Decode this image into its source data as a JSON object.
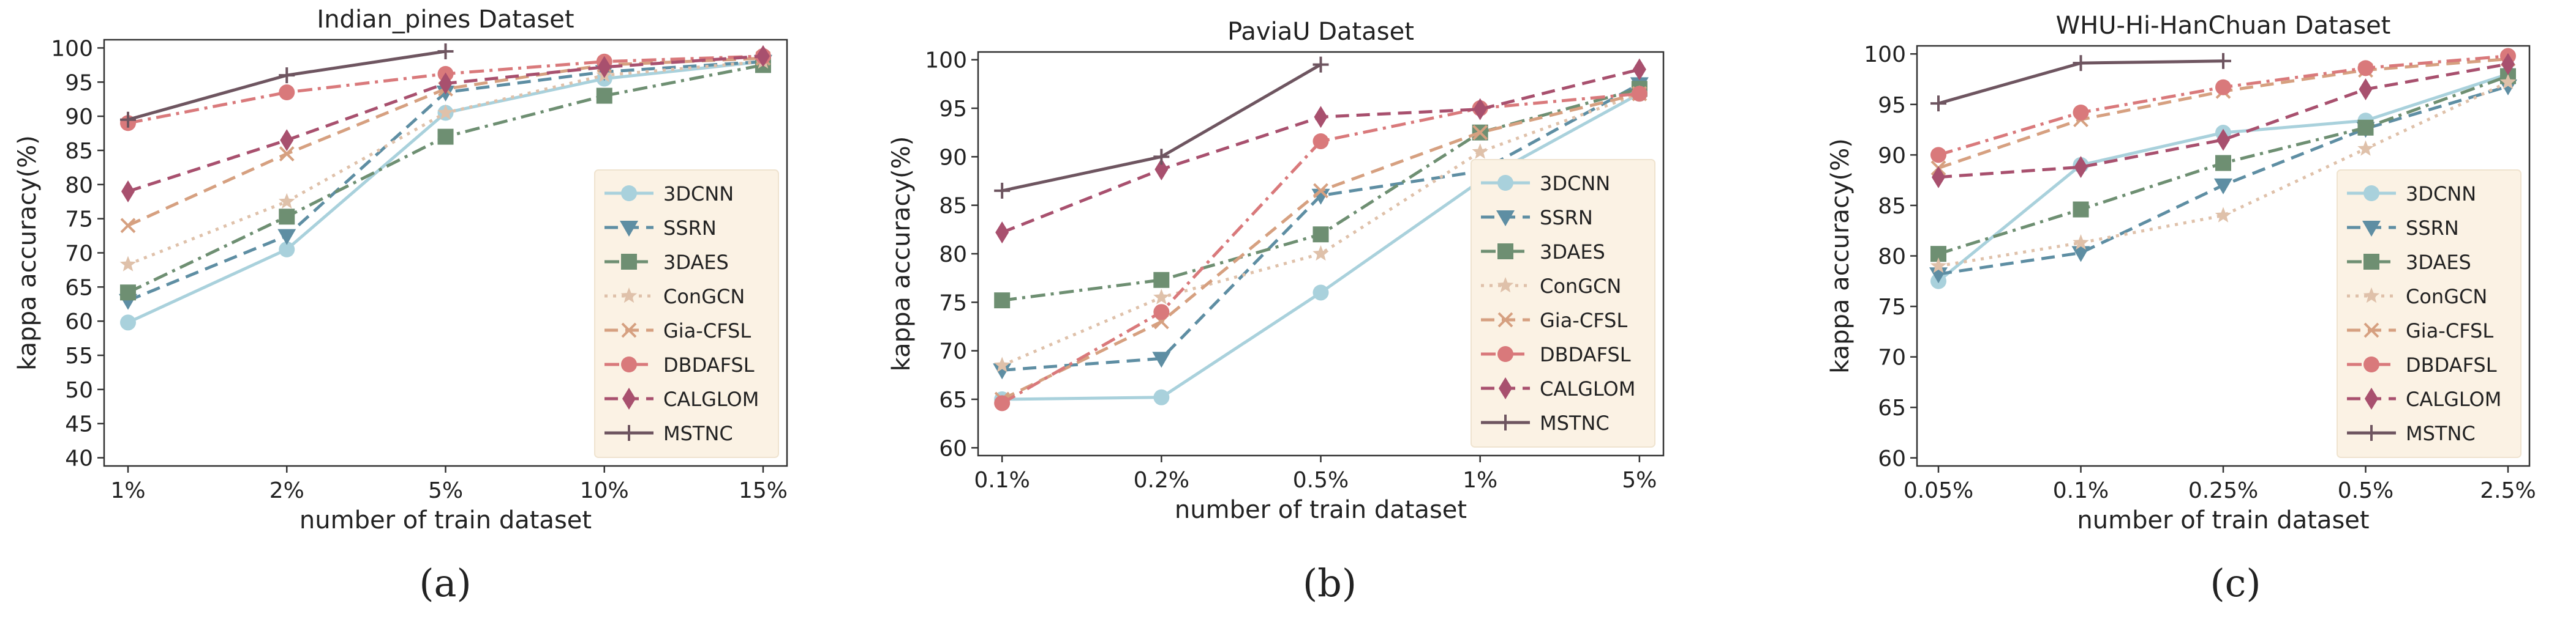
{
  "chart_data": [
    {
      "type": "line",
      "panel_label": "(a)",
      "title": "Indian_pines Dataset",
      "xlabel": "number of train dataset",
      "ylabel": "kappa accuracy(%)",
      "categories": [
        "1%",
        "2%",
        "5%",
        "10%",
        "15%"
      ],
      "ylim": [
        40,
        100
      ],
      "yticks": [
        40,
        45,
        50,
        55,
        60,
        65,
        70,
        75,
        80,
        85,
        90,
        95,
        100
      ],
      "legend_position": "lower-right",
      "grid": false,
      "series": [
        {
          "name": "3DCNN",
          "values": [
            59.8,
            70.5,
            90.5,
            95.5,
            98.0
          ]
        },
        {
          "name": "SSRN",
          "values": [
            63.0,
            72.5,
            93.5,
            96.5,
            98.0
          ]
        },
        {
          "name": "3DAES",
          "values": [
            64.2,
            75.3,
            87.0,
            93.0,
            97.5
          ]
        },
        {
          "name": "ConGCN",
          "values": [
            68.3,
            77.5,
            90.5,
            96.0,
            98.0
          ]
        },
        {
          "name": "Gia-CFSL",
          "values": [
            74.0,
            84.5,
            94.0,
            97.5,
            98.5
          ]
        },
        {
          "name": "DBDAFSL",
          "values": [
            89.0,
            93.5,
            96.2,
            98.0,
            98.8
          ]
        },
        {
          "name": "CALGLOM",
          "values": [
            79.0,
            86.5,
            94.8,
            97.2,
            98.8
          ]
        },
        {
          "name": "MSTNC",
          "values": [
            89.5,
            96.0,
            99.5,
            null,
            null
          ]
        }
      ]
    },
    {
      "type": "line",
      "panel_label": "(b)",
      "title": "PaviaU Dataset",
      "xlabel": "number of train dataset",
      "ylabel": "kappa accuracy(%)",
      "categories": [
        "0.1%",
        "0.2%",
        "0.5%",
        "1%",
        "5%"
      ],
      "ylim": [
        60,
        100
      ],
      "yticks": [
        60,
        65,
        70,
        75,
        80,
        85,
        90,
        95,
        100
      ],
      "legend_position": "lower-right",
      "grid": false,
      "series": [
        {
          "name": "3DCNN",
          "values": [
            65.0,
            65.2,
            76.0,
            87.5,
            96.5
          ]
        },
        {
          "name": "SSRN",
          "values": [
            68.0,
            69.2,
            86.0,
            88.5,
            97.5
          ]
        },
        {
          "name": "3DAES",
          "values": [
            75.2,
            77.3,
            82.0,
            92.5,
            97.0
          ]
        },
        {
          "name": "ConGCN",
          "values": [
            68.5,
            75.5,
            80.0,
            90.5,
            96.5
          ]
        },
        {
          "name": "Gia-CFSL",
          "values": [
            65.0,
            73.0,
            86.5,
            92.5,
            96.5
          ]
        },
        {
          "name": "DBDAFSL",
          "values": [
            64.6,
            74.0,
            91.6,
            95.0,
            96.5
          ]
        },
        {
          "name": "CALGLOM",
          "values": [
            82.2,
            88.7,
            94.1,
            94.9,
            99.0
          ]
        },
        {
          "name": "MSTNC",
          "values": [
            86.5,
            90.0,
            99.5,
            null,
            null
          ]
        }
      ]
    },
    {
      "type": "line",
      "panel_label": "(c)",
      "title": "WHU-Hi-HanChuan Dataset",
      "xlabel": "number of train dataset",
      "ylabel": "kappa accuracy(%)",
      "categories": [
        "0.05%",
        "0.1%",
        "0.25%",
        "0.5%",
        "2.5%"
      ],
      "ylim": [
        60,
        100
      ],
      "yticks": [
        60,
        65,
        70,
        75,
        80,
        85,
        90,
        95,
        100
      ],
      "legend_position": "lower-right",
      "grid": false,
      "series": [
        {
          "name": "3DCNN",
          "values": [
            77.5,
            89.0,
            92.2,
            93.4,
            98.0
          ]
        },
        {
          "name": "SSRN",
          "values": [
            78.2,
            80.3,
            87.0,
            92.6,
            96.8
          ]
        },
        {
          "name": "3DAES",
          "values": [
            80.2,
            84.6,
            89.2,
            92.7,
            97.8
          ]
        },
        {
          "name": "ConGCN",
          "values": [
            79.0,
            81.3,
            84.0,
            90.6,
            97.2
          ]
        },
        {
          "name": "Gia-CFSL",
          "values": [
            88.7,
            93.5,
            96.3,
            98.4,
            99.5
          ]
        },
        {
          "name": "DBDAFSL",
          "values": [
            90.0,
            94.2,
            96.7,
            98.6,
            99.8
          ]
        },
        {
          "name": "CALGLOM",
          "values": [
            87.8,
            88.8,
            91.5,
            96.5,
            99.0
          ]
        },
        {
          "name": "MSTNC",
          "values": [
            95.1,
            99.1,
            99.3,
            null,
            null
          ]
        }
      ]
    }
  ],
  "series_styles": [
    {
      "name": "3DCNN",
      "color": "#a9d1dc",
      "dash": "solid",
      "marker": "circle"
    },
    {
      "name": "SSRN",
      "color": "#5e8ea3",
      "dash": "dashed",
      "marker": "triangle-down"
    },
    {
      "name": "3DAES",
      "color": "#6e8f72",
      "dash": "dashdot",
      "marker": "square"
    },
    {
      "name": "ConGCN",
      "color": "#dfc1aa",
      "dash": "dotted",
      "marker": "star"
    },
    {
      "name": "Gia-CFSL",
      "color": "#d6a080",
      "dash": "dashed",
      "marker": "x"
    },
    {
      "name": "DBDAFSL",
      "color": "#d9797b",
      "dash": "dashdot",
      "marker": "circle"
    },
    {
      "name": "CALGLOM",
      "color": "#a8506e",
      "dash": "dashed",
      "marker": "diamond"
    },
    {
      "name": "MSTNC",
      "color": "#6e5560",
      "dash": "solid",
      "marker": "plus"
    }
  ],
  "legend_background": "#fbf2e4",
  "axis_color": "#333333"
}
